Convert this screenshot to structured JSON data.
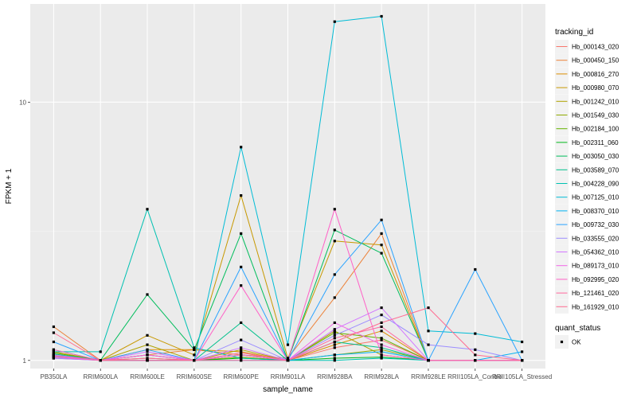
{
  "chart_data": {
    "type": "line",
    "xlabel": "sample_name",
    "ylabel": "FPKM + 1",
    "y_scale": "log10",
    "ylim": [
      0.93,
      24
    ],
    "y_ticks": [
      1,
      10
    ],
    "grid": true,
    "legend_position": "right",
    "categories": [
      "PB350LA",
      "RRIM600LA",
      "RRIM600LE",
      "RRIM600SE",
      "RRIM600PE",
      "RRIM901LA",
      "RRIM928BA",
      "RRIM928LA",
      "RRIM928LE",
      "RRII105LA_Control",
      "RRII105LA_Stressed"
    ],
    "series_legend_title": "tracking_id",
    "series": [
      {
        "name": "Hb_000143_020",
        "color": "#F8766D",
        "values": [
          1.02,
          1.0,
          1.0,
          1.0,
          1.05,
          1.0,
          1.12,
          1.2,
          1.0,
          1.0,
          1.0
        ]
      },
      {
        "name": "Hb_000450_150",
        "color": "#EC8239",
        "values": [
          1.35,
          1.0,
          1.05,
          1.1,
          1.05,
          1.02,
          1.75,
          3.1,
          1.0,
          1.0,
          1.0
        ]
      },
      {
        "name": "Hb_000816_270",
        "color": "#DB8E00",
        "values": [
          1.05,
          1.0,
          1.1,
          1.1,
          1.08,
          1.0,
          1.15,
          1.3,
          1.0,
          1.0,
          1.0
        ]
      },
      {
        "name": "Hb_000980_070",
        "color": "#C79800",
        "values": [
          1.08,
          1.0,
          1.25,
          1.05,
          4.35,
          1.02,
          2.9,
          2.8,
          1.0,
          1.0,
          1.0
        ]
      },
      {
        "name": "Hb_001242_010",
        "color": "#AEA200",
        "values": [
          1.05,
          1.0,
          1.15,
          1.0,
          1.1,
          1.0,
          1.3,
          1.05,
          1.0,
          1.0,
          1.0
        ]
      },
      {
        "name": "Hb_001549_030",
        "color": "#8FAA00",
        "values": [
          1.03,
          1.0,
          1.0,
          1.0,
          1.03,
          1.0,
          1.05,
          1.1,
          1.0,
          1.0,
          1.0
        ]
      },
      {
        "name": "Hb_002184_100",
        "color": "#64B200",
        "values": [
          1.07,
          1.0,
          1.02,
          1.0,
          1.05,
          1.0,
          1.28,
          1.22,
          1.0,
          1.0,
          1.0
        ]
      },
      {
        "name": "Hb_002311_060",
        "color": "#00B81B",
        "values": [
          1.04,
          1.0,
          1.0,
          1.0,
          1.02,
          1.0,
          1.02,
          1.03,
          1.0,
          1.0,
          1.0
        ]
      },
      {
        "name": "Hb_003050_030",
        "color": "#00BD5C",
        "values": [
          1.1,
          1.0,
          1.8,
          1.1,
          3.1,
          1.0,
          3.2,
          2.6,
          1.0,
          1.0,
          1.0
        ]
      },
      {
        "name": "Hb_003589_070",
        "color": "#00C08B",
        "values": [
          1.06,
          1.0,
          1.05,
          1.0,
          1.4,
          1.0,
          1.18,
          1.12,
          1.0,
          1.0,
          1.0
        ]
      },
      {
        "name": "Hb_004228_090",
        "color": "#00C1B2",
        "values": [
          1.08,
          1.08,
          3.85,
          1.12,
          1.02,
          1.0,
          1.0,
          1.02,
          1.0,
          1.0,
          1.0
        ]
      },
      {
        "name": "Hb_007125_010",
        "color": "#00BCD6",
        "values": [
          1.05,
          1.0,
          1.0,
          1.0,
          6.7,
          1.15,
          20.5,
          21.5,
          1.3,
          1.27,
          1.18
        ]
      },
      {
        "name": "Hb_008370_010",
        "color": "#00B3F2",
        "values": [
          1.03,
          1.0,
          1.0,
          1.0,
          1.0,
          1.0,
          1.05,
          1.08,
          1.0,
          1.0,
          1.08
        ]
      },
      {
        "name": "Hb_009732_030",
        "color": "#29A3FF",
        "values": [
          1.18,
          1.0,
          1.1,
          1.0,
          2.3,
          1.0,
          2.15,
          3.5,
          1.0,
          2.25,
          1.0
        ]
      },
      {
        "name": "Hb_033555_020",
        "color": "#9C8DFF",
        "values": [
          1.02,
          1.0,
          1.05,
          1.0,
          1.2,
          1.0,
          1.25,
          1.5,
          1.15,
          1.1,
          1.0
        ]
      },
      {
        "name": "Hb_054362_010",
        "color": "#D277FF",
        "values": [
          1.05,
          1.0,
          1.08,
          1.0,
          1.12,
          1.0,
          1.32,
          1.6,
          1.0,
          1.0,
          1.0
        ]
      },
      {
        "name": "Hb_089173_010",
        "color": "#F166E8",
        "values": [
          1.03,
          1.0,
          1.0,
          1.0,
          1.05,
          1.0,
          1.4,
          1.15,
          1.0,
          1.0,
          1.0
        ]
      },
      {
        "name": "Hb_092995_020",
        "color": "#FF61C7",
        "values": [
          1.1,
          1.0,
          1.05,
          1.0,
          1.95,
          1.0,
          3.85,
          1.05,
          1.0,
          1.0,
          1.0
        ]
      },
      {
        "name": "Hb_121461_020",
        "color": "#FF689E",
        "values": [
          1.04,
          1.0,
          1.02,
          1.0,
          1.07,
          1.0,
          1.22,
          1.35,
          1.0,
          1.0,
          1.0
        ]
      },
      {
        "name": "Hb_161929_010",
        "color": "#FF6C91",
        "values": [
          1.28,
          1.0,
          1.0,
          1.0,
          1.0,
          1.0,
          1.18,
          1.4,
          1.6,
          1.05,
          1.0
        ]
      }
    ],
    "shape_legend_title": "quant_status",
    "shape_legend_items": [
      {
        "label": "OK",
        "shape": "square"
      }
    ],
    "colors": {
      "panel": "#EBEBEB",
      "grid_major": "#FFFFFF",
      "point": "#000000"
    }
  }
}
